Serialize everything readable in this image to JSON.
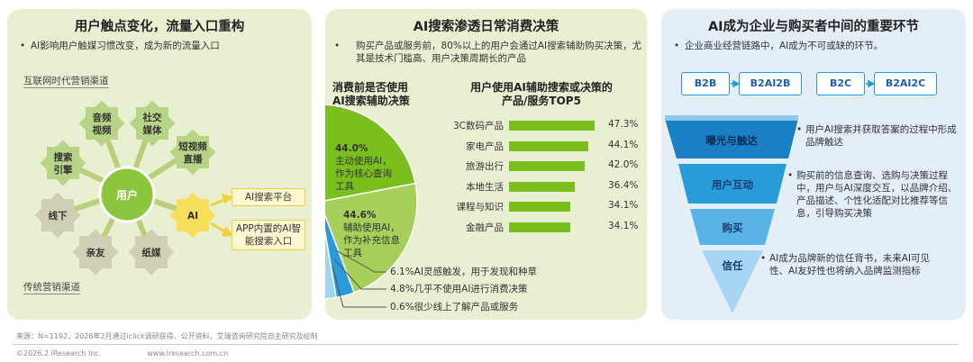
{
  "panel1": {
    "title": "用户触点变化，流量入口重构",
    "bullet": "AI影响用户触媒习惯改变，成为新的流量入口",
    "internet_label": "互联网时代营销渠道",
    "traditional_label": "传统营销渠道",
    "center": "用户",
    "nodes": {
      "audio_video": [
        "音频",
        "视频"
      ],
      "social": [
        "社交",
        "媒体"
      ],
      "short_video": [
        "短视频",
        "直播"
      ],
      "search": [
        "搜索",
        "引擎"
      ],
      "offline": "线下",
      "friends": "亲友",
      "paper": "纸媒",
      "ai": "AI"
    },
    "ai_targets": [
      "AI搜索平台",
      "APP内置的AI智能搜索入口"
    ]
  },
  "panel2": {
    "title": "AI搜索渗透日常消费决策",
    "bullet": "购买产品或服务前，80%以上的用户会通过AI搜索辅助购买决策，尤其是技术门槛高、用户决策周期长的产品",
    "left_title": [
      "消费前是否使用",
      "AI搜索辅助决策"
    ],
    "right_title": [
      "用户使用AI辅助搜索或决策的",
      "产品/服务TOP5"
    ],
    "pie_labels": [
      {
        "pct": "44.0%",
        "text": "主动使用AI，作为核心查询工具"
      },
      {
        "pct": "44.6%",
        "text": "辅助使用AI，作为补充信息工具"
      }
    ],
    "pie_notes": [
      "6.1%AI灵感触发，用于发现和种草",
      "4.8%几乎不使用AI进行消费决策",
      "0.6%很少线上了解产品或服务"
    ]
  },
  "chart_data": {
    "type": "bar",
    "title": "用户使用AI辅助搜索或决策的产品/服务TOP5",
    "categories": [
      "3C数码产品",
      "家电产品",
      "旅游出行",
      "本地生活",
      "课程与知识",
      "金融产品"
    ],
    "values": [
      47.3,
      44.1,
      42.0,
      36.4,
      34.1,
      34.1
    ],
    "value_labels": [
      "47.3%",
      "44.1%",
      "42.0%",
      "36.4%",
      "34.1%",
      "34.1%"
    ],
    "xlim": [
      0,
      50
    ],
    "pie": {
      "type": "pie",
      "title": "消费前是否使用AI搜索辅助决策",
      "slices": [
        {
          "label": "主动使用AI，作为核心查询工具",
          "value": 44.0
        },
        {
          "label": "辅助使用AI，作为补充信息工具",
          "value": 44.6
        },
        {
          "label": "AI灵感触发，用于发现和种草",
          "value": 6.1
        },
        {
          "label": "几乎不使用AI进行消费决策",
          "value": 4.8
        },
        {
          "label": "很少线上了解产品或服务",
          "value": 0.6
        }
      ]
    }
  },
  "panel3": {
    "title": "AI成为企业与购买者中间的重要环节",
    "bullet": "企业商业经营链路中，AI成为不可或缺的环节。",
    "chips": [
      "B2B",
      "B2AI2B",
      "B2C",
      "B2AI2C"
    ],
    "funnel": [
      "曝光与触达",
      "用户互动",
      "购买",
      "信任"
    ],
    "descs": [
      "用户AI搜索并获取答案的过程中形成品牌触达",
      "购买前的信息查询、选购与决策过程中，用户与AI深度交互，以品牌介绍、产品描述、个性化适配对比推荐等信息，引导购买决策",
      "AI成为品牌新的信任背书，未来AI可见性、AI友好性也将纳入品牌监测指标"
    ]
  },
  "footer": {
    "source": "来源：N=1192，2026年2月通过iclick调研获得、公开资料，艾瑞咨询研究院自主研究及绘制",
    "copyright": "©2026.2 iResearch Inc.                    www.iresearch.com.cn"
  },
  "colors": {
    "green": "#7bbf1e",
    "blue": "#2a9bd9",
    "dark_blue": "#1b3b6f",
    "panel_green": "#e9f0d2",
    "panel_blue": "#e4eef7"
  }
}
